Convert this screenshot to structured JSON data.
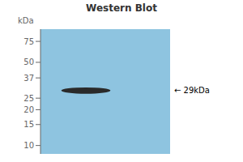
{
  "chart_data": {
    "type": "band",
    "title": "Western Blot",
    "y_label": "kDa",
    "log": "y",
    "ylim": [
      8.5,
      95
    ],
    "yticks": [
      75,
      50,
      37,
      25,
      20,
      15,
      10
    ],
    "colors": [
      "#8EC4E0",
      "#2a2a2a"
    ],
    "values": [
      29
    ],
    "heights": [
      3.5
    ],
    "annotations": [
      {
        "text": "← 29kDa",
        "y": 29
      }
    ]
  }
}
